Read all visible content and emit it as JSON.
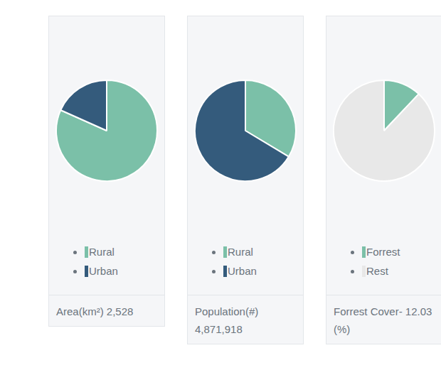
{
  "chart_data": [
    {
      "type": "pie",
      "categories": [
        "Rural",
        "Urban"
      ],
      "values": [
        81.7,
        18.3
      ],
      "colors": [
        "#7bc0a8",
        "#345b7c"
      ],
      "legend": "bottom",
      "caption": "Area(km²) 2,528"
    },
    {
      "type": "pie",
      "categories": [
        "Rural",
        "Urban"
      ],
      "values": [
        33.6,
        66.4
      ],
      "colors": [
        "#7bc0a8",
        "#345b7c"
      ],
      "legend": "bottom",
      "caption": "Population(#) 4,871,918"
    },
    {
      "type": "pie",
      "categories": [
        "Forrest",
        "Rest"
      ],
      "values": [
        12.03,
        87.97
      ],
      "colors": [
        "#7bc0a8",
        "#e8e8e8"
      ],
      "legend": "bottom",
      "caption": "Forrest Cover- 12.03 (%)"
    }
  ]
}
